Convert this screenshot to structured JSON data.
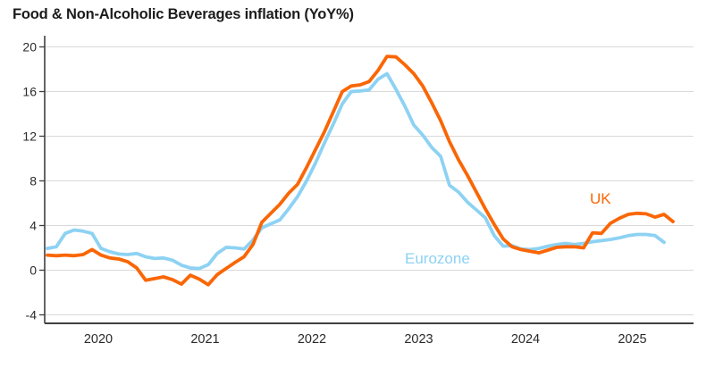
{
  "chart_data": {
    "type": "line",
    "title": "Food & Non-Alcoholic Beverages inflation (YoY%)",
    "xlabel": "",
    "ylabel": "",
    "x_tick_labels": [
      "2020",
      "2021",
      "2022",
      "2023",
      "2024",
      "2025"
    ],
    "y_ticks": [
      -4,
      0,
      4,
      8,
      12,
      16,
      20
    ],
    "ylim": [
      -5,
      21
    ],
    "x_range_years": [
      2019.5,
      2025.45
    ],
    "frequency": "monthly",
    "grid": "horizontal-only",
    "legend_position": "inline-annotations",
    "colors": {
      "uk_line": "#fa6605",
      "eurozone_line": "#8dd2f3",
      "grid": "#d9d9d9",
      "axis": "#3f3f3f",
      "tick_text": "#2a2a2a",
      "title_text": "#1c1c1c"
    },
    "series": [
      {
        "name": "UK",
        "color": "#fa6605",
        "values": [
          1.35,
          1.3,
          1.35,
          1.3,
          1.4,
          1.85,
          1.35,
          1.1,
          1.0,
          0.75,
          0.2,
          -0.9,
          -0.75,
          -0.6,
          -0.85,
          -1.25,
          -0.45,
          -0.8,
          -1.3,
          -0.4,
          0.15,
          0.7,
          1.2,
          2.3,
          4.3,
          5.1,
          5.9,
          6.9,
          7.7,
          9.2,
          10.8,
          12.4,
          14.2,
          16.0,
          16.5,
          16.6,
          16.9,
          17.9,
          19.15,
          19.1,
          18.4,
          17.6,
          16.5,
          15.0,
          13.4,
          11.5,
          9.9,
          8.5,
          7.0,
          5.5,
          4.1,
          2.8,
          2.1,
          1.85,
          1.7,
          1.55,
          1.8,
          2.05,
          2.1,
          2.1,
          2.0,
          3.35,
          3.3,
          4.2,
          4.65,
          5.0,
          5.1,
          5.05,
          4.75,
          5.0,
          4.35
        ]
      },
      {
        "name": "Eurozone",
        "color": "#8dd2f3",
        "values": [
          1.95,
          2.1,
          3.3,
          3.6,
          3.5,
          3.3,
          1.95,
          1.65,
          1.45,
          1.4,
          1.5,
          1.2,
          1.05,
          1.1,
          0.9,
          0.45,
          0.2,
          0.15,
          0.5,
          1.5,
          2.05,
          2.0,
          1.9,
          2.7,
          3.8,
          4.15,
          4.5,
          5.5,
          6.6,
          8.0,
          9.6,
          11.4,
          13.1,
          14.9,
          16.0,
          16.05,
          16.15,
          17.1,
          17.6,
          16.2,
          14.7,
          13.0,
          12.1,
          11.0,
          10.2,
          7.6,
          7.0,
          6.1,
          5.4,
          4.7,
          3.1,
          2.15,
          2.2,
          1.9,
          1.85,
          1.95,
          2.15,
          2.3,
          2.4,
          2.3,
          2.4,
          2.55,
          2.65,
          2.75,
          2.9,
          3.1,
          3.2,
          3.2,
          3.1,
          2.5
        ]
      }
    ],
    "annotations": [
      {
        "text": "UK",
        "color": "#fa6605"
      },
      {
        "text": "Eurozone",
        "color": "#8dd2f3"
      }
    ]
  }
}
